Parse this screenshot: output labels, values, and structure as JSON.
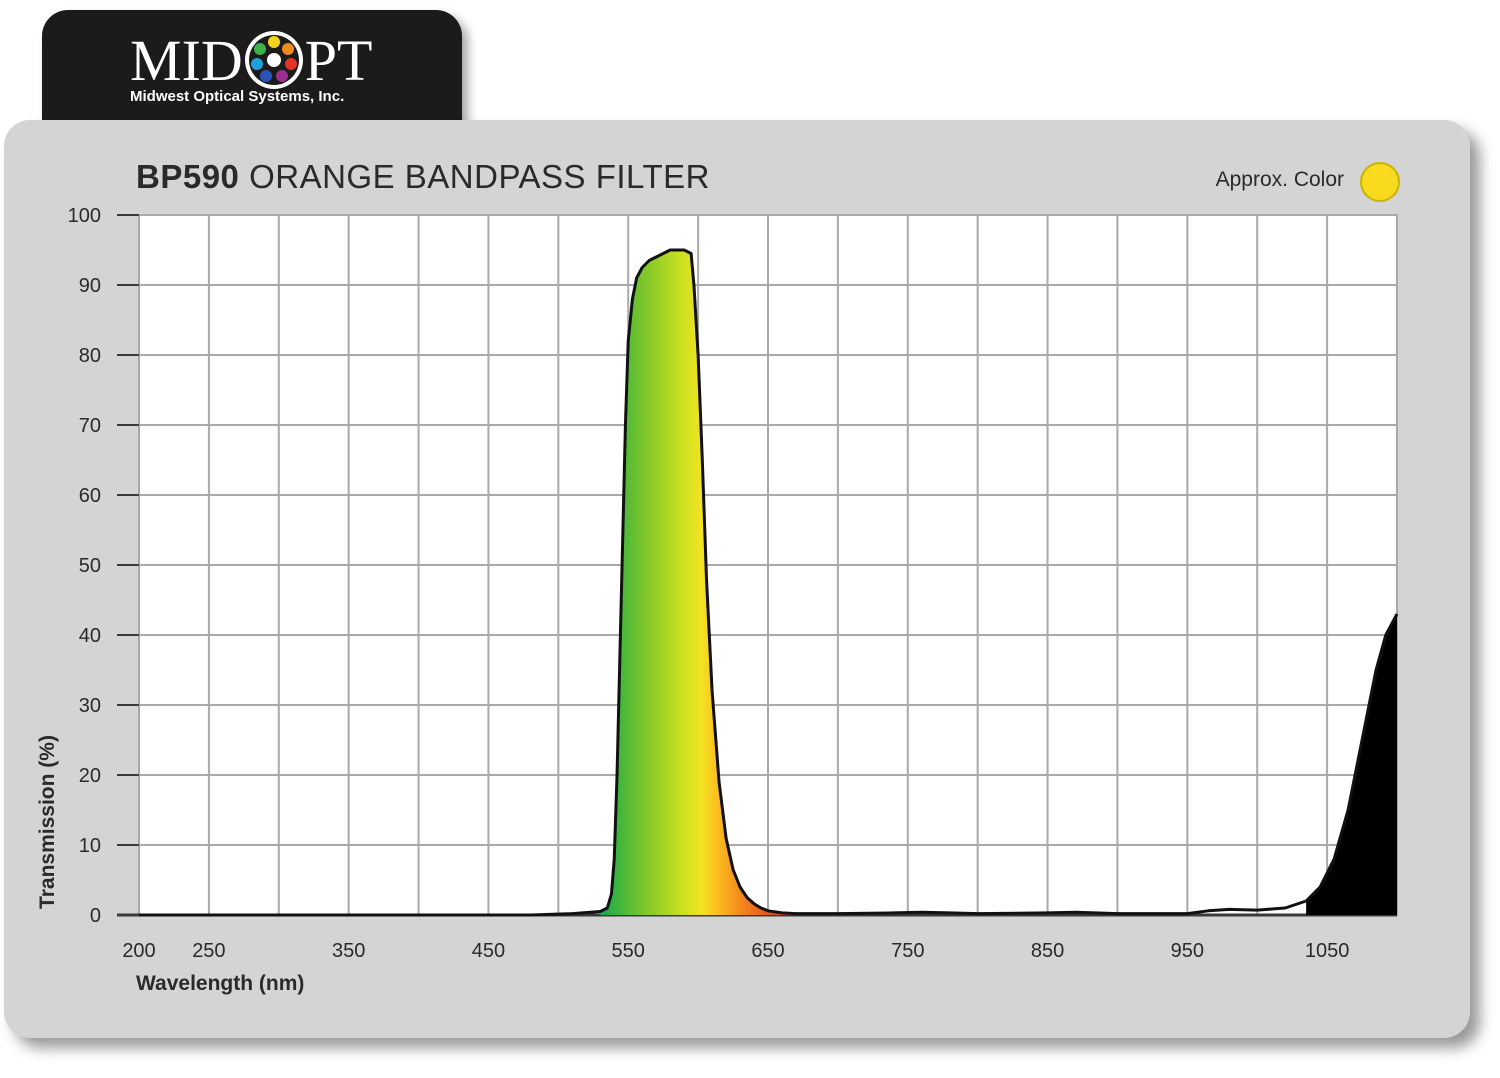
{
  "logo": {
    "word_left": "MID",
    "word_right": "PT",
    "subtitle": "Midwest Optical Systems, Inc."
  },
  "colors": {
    "approx_color": "#f7da1e",
    "panel": "#d4d4d4",
    "grid": "#a9a9a9",
    "nir_fill": "#000000"
  },
  "chart_data": {
    "type": "area",
    "title_bold": "BP590",
    "title_rest": "ORANGE BANDPASS FILTER",
    "approx_color_label": "Approx. Color",
    "xlabel": "Wavelength (nm)",
    "ylabel": "Transmission (%)",
    "xlim": [
      200,
      1100
    ],
    "ylim": [
      0,
      100
    ],
    "grid": true,
    "x_ticks": [
      200,
      250,
      350,
      450,
      550,
      650,
      750,
      850,
      950,
      1050
    ],
    "y_ticks": [
      0,
      10,
      20,
      30,
      40,
      50,
      60,
      70,
      80,
      90,
      100
    ],
    "series": [
      {
        "x": [
          200,
          300,
          400,
          480,
          510,
          530,
          535,
          538,
          540,
          542,
          545,
          548,
          550,
          553,
          556,
          560,
          565,
          570,
          575,
          580,
          585,
          590,
          595,
          597,
          600,
          603,
          606,
          610,
          615,
          620,
          625,
          630,
          635,
          640,
          645,
          650,
          660,
          670,
          700,
          740,
          760,
          780,
          800,
          850,
          870,
          900,
          950,
          965,
          980,
          1000,
          1020,
          1035,
          1045,
          1055,
          1065,
          1075,
          1085,
          1092,
          1100
        ],
        "y": [
          0,
          0,
          0,
          0,
          0.2,
          0.5,
          1,
          3,
          8,
          20,
          45,
          70,
          82,
          88,
          91,
          92.5,
          93.5,
          94,
          94.5,
          95,
          95,
          95,
          94.5,
          90,
          80,
          65,
          48,
          32,
          19,
          11,
          6.5,
          4,
          2.5,
          1.6,
          1,
          0.6,
          0.3,
          0.2,
          0.2,
          0.3,
          0.4,
          0.3,
          0.2,
          0.3,
          0.4,
          0.2,
          0.2,
          0.6,
          0.8,
          0.7,
          1.0,
          2.0,
          4.0,
          8.0,
          15.0,
          25.0,
          35.0,
          40.0,
          43.0
        ]
      }
    ]
  }
}
